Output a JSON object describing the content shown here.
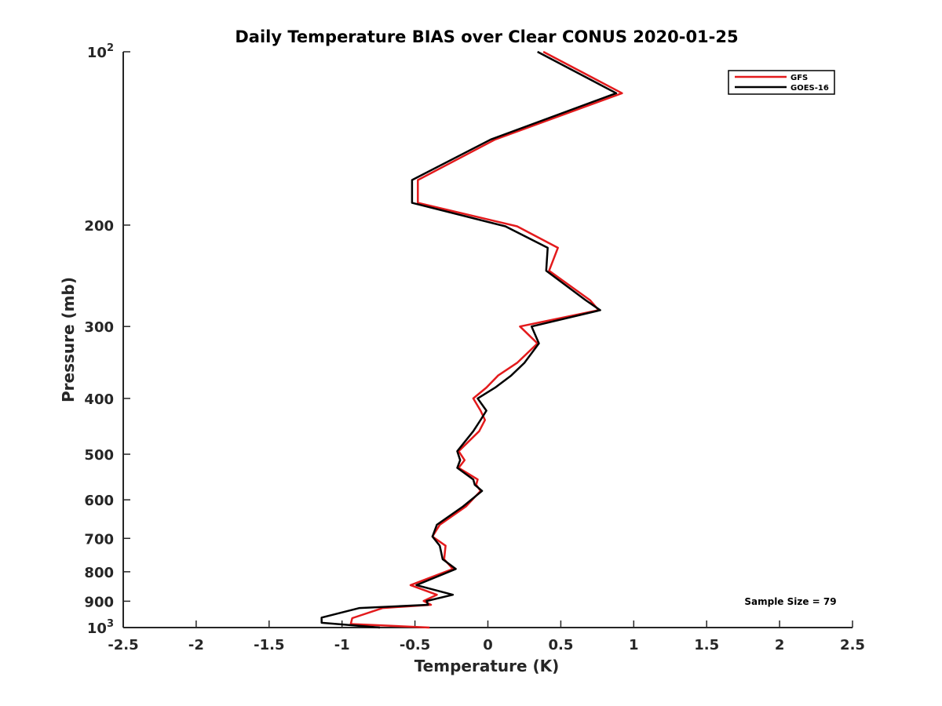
{
  "chart_data": {
    "type": "line",
    "title": "Daily Temperature BIAS over Clear CONUS 2020-01-25",
    "xlabel": "Temperature (K)",
    "ylabel": "Pressure (mb)",
    "xlim": [
      -2.5,
      2.5
    ],
    "ylim": [
      1000,
      100
    ],
    "y_scale": "log",
    "grid": false,
    "legend_position": "top-right",
    "x_ticks": [
      -2.5,
      -2,
      -1.5,
      -1,
      -0.5,
      0,
      0.5,
      1,
      1.5,
      2,
      2.5
    ],
    "x_tick_labels": [
      "-2.5",
      "-2",
      "-1.5",
      "-1",
      "-0.5",
      "0",
      "0.5",
      "1",
      "1.5",
      "2",
      "2.5"
    ],
    "y_ticks": [
      {
        "value": 100,
        "base": "10",
        "exp": "2",
        "label": ""
      },
      {
        "value": 200,
        "label": "200"
      },
      {
        "value": 300,
        "label": "300"
      },
      {
        "value": 400,
        "label": "400"
      },
      {
        "value": 500,
        "label": "500"
      },
      {
        "value": 600,
        "label": "600"
      },
      {
        "value": 700,
        "label": "700"
      },
      {
        "value": 800,
        "label": "800"
      },
      {
        "value": 900,
        "label": "900"
      },
      {
        "value": 1000,
        "base": "10",
        "exp": "3",
        "label": ""
      }
    ],
    "annotation": "Sample Size = 79",
    "series": [
      {
        "name": "GFS",
        "color": "#e31a1c",
        "points": [
          [
            0.38,
            100
          ],
          [
            0.92,
            118
          ],
          [
            0.05,
            142
          ],
          [
            -0.48,
            167
          ],
          [
            -0.48,
            183
          ],
          [
            0.2,
            201
          ],
          [
            0.48,
            219
          ],
          [
            0.42,
            240
          ],
          [
            0.7,
            270
          ],
          [
            0.76,
            281
          ],
          [
            0.22,
            300
          ],
          [
            0.34,
            321
          ],
          [
            0.2,
            347
          ],
          [
            0.07,
            365
          ],
          [
            -0.01,
            383
          ],
          [
            -0.1,
            400
          ],
          [
            -0.05,
            420
          ],
          [
            -0.02,
            436
          ],
          [
            -0.06,
            456
          ],
          [
            -0.2,
            494
          ],
          [
            -0.16,
            512
          ],
          [
            -0.2,
            528
          ],
          [
            -0.07,
            553
          ],
          [
            -0.08,
            565
          ],
          [
            -0.05,
            579
          ],
          [
            -0.15,
            616
          ],
          [
            -0.33,
            663
          ],
          [
            -0.38,
            695
          ],
          [
            -0.29,
            721
          ],
          [
            -0.3,
            761
          ],
          [
            -0.24,
            791
          ],
          [
            -0.53,
            844
          ],
          [
            -0.35,
            877
          ],
          [
            -0.44,
            899
          ],
          [
            -0.39,
            913
          ],
          [
            -0.72,
            925
          ],
          [
            -0.93,
            963
          ],
          [
            -0.94,
            986
          ],
          [
            -0.4,
            1000
          ]
        ]
      },
      {
        "name": "GOES-16",
        "color": "#000000",
        "points": [
          [
            0.34,
            100
          ],
          [
            0.88,
            118
          ],
          [
            0.02,
            142
          ],
          [
            -0.52,
            167
          ],
          [
            -0.52,
            183
          ],
          [
            0.12,
            201
          ],
          [
            0.41,
            219
          ],
          [
            0.4,
            240
          ],
          [
            0.67,
            270
          ],
          [
            0.77,
            281
          ],
          [
            0.3,
            300
          ],
          [
            0.35,
            321
          ],
          [
            0.25,
            347
          ],
          [
            0.16,
            365
          ],
          [
            0.05,
            383
          ],
          [
            -0.07,
            400
          ],
          [
            -0.01,
            420
          ],
          [
            -0.05,
            436
          ],
          [
            -0.1,
            456
          ],
          [
            -0.21,
            494
          ],
          [
            -0.19,
            512
          ],
          [
            -0.21,
            528
          ],
          [
            -0.1,
            553
          ],
          [
            -0.09,
            565
          ],
          [
            -0.04,
            579
          ],
          [
            -0.17,
            616
          ],
          [
            -0.35,
            663
          ],
          [
            -0.38,
            695
          ],
          [
            -0.33,
            721
          ],
          [
            -0.31,
            761
          ],
          [
            -0.22,
            791
          ],
          [
            -0.49,
            844
          ],
          [
            -0.24,
            877
          ],
          [
            -0.42,
            899
          ],
          [
            -0.41,
            913
          ],
          [
            -0.88,
            925
          ],
          [
            -1.14,
            961
          ],
          [
            -1.14,
            981
          ],
          [
            -0.74,
            1000
          ]
        ]
      }
    ]
  }
}
